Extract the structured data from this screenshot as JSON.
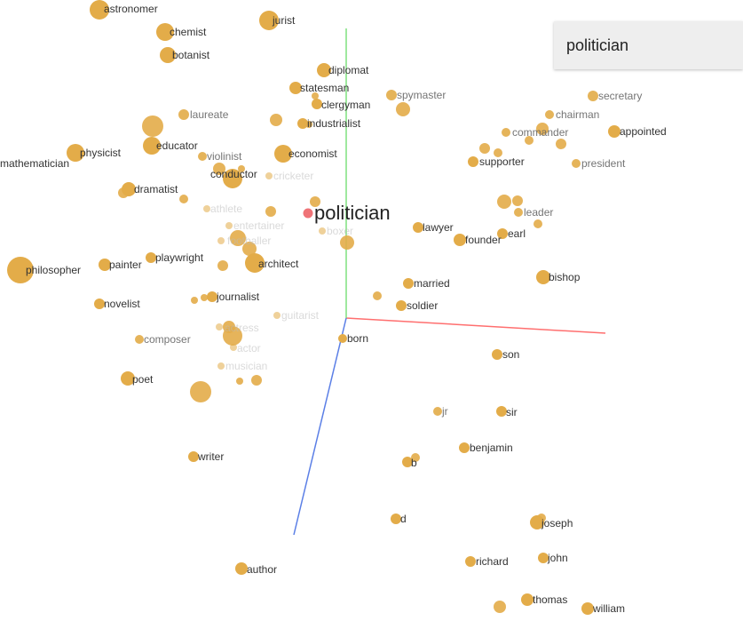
{
  "search": {
    "value": "politician"
  },
  "colors": {
    "point": "#e3ac49",
    "selected": "#ef7377",
    "axis_x": "#ff6f6f",
    "axis_y": "#7fe07f",
    "axis_z": "#5b7fe6",
    "label_dark": "#333333",
    "label_mid": "#666666",
    "label_faint": "#bbbbbb"
  },
  "selected_label": "politician",
  "points": [
    {
      "label": "astronomer",
      "tone": "dark"
    },
    {
      "label": "jurist",
      "tone": "dark"
    },
    {
      "label": "chemist",
      "tone": "dark"
    },
    {
      "label": "botanist",
      "tone": "dark"
    },
    {
      "label": "diplomat",
      "tone": "dark"
    },
    {
      "label": "statesman",
      "tone": "dark"
    },
    {
      "label": "clergyman",
      "tone": "dark"
    },
    {
      "label": "spymaster",
      "tone": "mid"
    },
    {
      "label": "industrialist",
      "tone": "dark"
    },
    {
      "label": "laureate",
      "tone": "mid"
    },
    {
      "label": "economist",
      "tone": "dark"
    },
    {
      "label": "educator",
      "tone": "dark"
    },
    {
      "label": "physicist",
      "tone": "dark"
    },
    {
      "label": "mathematician",
      "tone": "dark"
    },
    {
      "label": "violinist",
      "tone": "mid"
    },
    {
      "label": "conductor",
      "tone": "dark"
    },
    {
      "label": "cricketer",
      "tone": "faint"
    },
    {
      "label": "dramatist",
      "tone": "dark"
    },
    {
      "label": "athlete",
      "tone": "faint"
    },
    {
      "label": "entertainer",
      "tone": "faint"
    },
    {
      "label": "footballer",
      "tone": "faint"
    },
    {
      "label": "boxer",
      "tone": "faint"
    },
    {
      "label": "playwright",
      "tone": "dark"
    },
    {
      "label": "painter",
      "tone": "dark"
    },
    {
      "label": "architect",
      "tone": "dark"
    },
    {
      "label": "philosopher",
      "tone": "dark"
    },
    {
      "label": "journalist",
      "tone": "dark"
    },
    {
      "label": "novelist",
      "tone": "dark"
    },
    {
      "label": "guitarist",
      "tone": "faint"
    },
    {
      "label": "actress",
      "tone": "faint"
    },
    {
      "label": "composer",
      "tone": "mid"
    },
    {
      "label": "actor",
      "tone": "faint"
    },
    {
      "label": "musician",
      "tone": "faint"
    },
    {
      "label": "poet",
      "tone": "dark"
    },
    {
      "label": "writer",
      "tone": "dark"
    },
    {
      "label": "author",
      "tone": "dark"
    },
    {
      "label": "secretary",
      "tone": "mid"
    },
    {
      "label": "chairman",
      "tone": "mid"
    },
    {
      "label": "commander",
      "tone": "mid"
    },
    {
      "label": "appointed",
      "tone": "dark"
    },
    {
      "label": "supporter",
      "tone": "dark"
    },
    {
      "label": "president",
      "tone": "mid"
    },
    {
      "label": "leader",
      "tone": "mid"
    },
    {
      "label": "earl",
      "tone": "dark"
    },
    {
      "label": "lawyer",
      "tone": "dark"
    },
    {
      "label": "founder",
      "tone": "dark"
    },
    {
      "label": "bishop",
      "tone": "dark"
    },
    {
      "label": "married",
      "tone": "dark"
    },
    {
      "label": "soldier",
      "tone": "dark"
    },
    {
      "label": "born",
      "tone": "dark"
    },
    {
      "label": "son",
      "tone": "dark"
    },
    {
      "label": "jr",
      "tone": "mid"
    },
    {
      "label": "sir",
      "tone": "dark"
    },
    {
      "label": "benjamin",
      "tone": "dark"
    },
    {
      "label": "b",
      "tone": "dark"
    },
    {
      "label": "d",
      "tone": "dark"
    },
    {
      "label": "joseph",
      "tone": "dark"
    },
    {
      "label": "richard",
      "tone": "dark"
    },
    {
      "label": "john",
      "tone": "dark"
    },
    {
      "label": "thomas",
      "tone": "dark"
    },
    {
      "label": "william",
      "tone": "dark"
    }
  ]
}
